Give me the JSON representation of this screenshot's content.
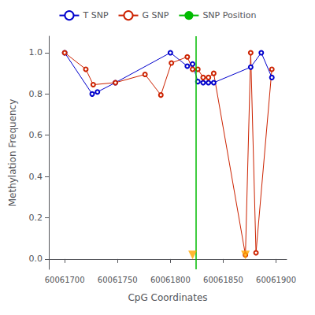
{
  "chart_data": {
    "type": "line",
    "xlabel": "CpG Coordinates",
    "ylabel": "Methylation Frequency",
    "xlim": [
      60061685,
      60061910
    ],
    "ylim": [
      -0.05,
      1.08
    ],
    "xticks": [
      60061700,
      60061750,
      60061800,
      60061850,
      60061900
    ],
    "yticks": [
      {
        "value": 0.0,
        "label": "0.0"
      },
      0.2,
      0.4,
      0.6,
      0.8,
      {
        "value": 1.0,
        "label": "1.0"
      }
    ],
    "grid": false,
    "legend": "top",
    "series": [
      {
        "name": "T SNP",
        "type": "line",
        "color": "#0000cc",
        "marker": "circle",
        "line_style": "solid",
        "x": [
          60061700,
          60061726,
          60061731,
          60061748,
          60061800,
          60061816,
          60061821,
          60061826,
          60061831,
          60061836,
          60061841,
          60061876,
          60061886,
          60061896
        ],
        "values": [
          1.0,
          0.8,
          0.81,
          0.855,
          1.0,
          0.935,
          0.945,
          0.86,
          0.855,
          0.855,
          0.855,
          0.93,
          1.0,
          0.88
        ]
      },
      {
        "name": "G SNP",
        "type": "line",
        "color": "#cc2200",
        "marker": "circle",
        "line_style": "solid",
        "x": [
          60061700,
          60061720,
          60061727,
          60061748,
          60061776,
          60061791,
          60061801,
          60061816,
          60061821,
          60061826,
          60061831,
          60061836,
          60061841,
          60061871,
          60061876,
          60061881,
          60061896
        ],
        "values": [
          1.0,
          0.92,
          0.845,
          0.855,
          0.895,
          0.795,
          0.95,
          0.98,
          0.92,
          0.92,
          0.88,
          0.88,
          0.9,
          0.02,
          1.0,
          0.03,
          0.92
        ]
      },
      {
        "name": "SNP Position",
        "type": "vline",
        "color": "#00bb00",
        "line_style": "solid",
        "x": [
          60061824
        ]
      },
      {
        "type": "scatter",
        "color": "#FFA500",
        "marker": "triangle-down",
        "x": [
          60061821,
          60061871
        ],
        "values": [
          0.02,
          0.02
        ]
      }
    ]
  }
}
